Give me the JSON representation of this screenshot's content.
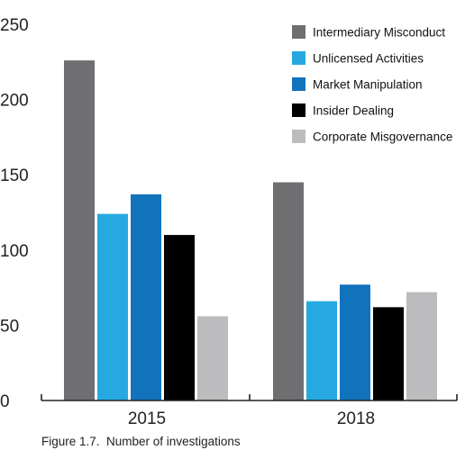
{
  "caption": "Figure 1.7.  Number of investigations",
  "chart_data": {
    "type": "bar",
    "title": "",
    "xlabel": "",
    "ylabel": "",
    "categories": [
      "2015",
      "2018"
    ],
    "ylim": [
      0,
      250
    ],
    "yticks": [
      0,
      50,
      100,
      150,
      200,
      250
    ],
    "grid": false,
    "legend_position": "top-right",
    "series": [
      {
        "name": "Intermediary Misconduct",
        "color": "#6f6f72",
        "values": [
          226,
          145
        ]
      },
      {
        "name": "Unlicensed Activities",
        "color": "#26a9e0",
        "values": [
          124,
          66
        ]
      },
      {
        "name": "Market Manipulation",
        "color": "#1273bd",
        "values": [
          137,
          77
        ]
      },
      {
        "name": "Insider Dealing",
        "color": "#000000",
        "values": [
          110,
          62
        ]
      },
      {
        "name": "Corporate Misgovernance",
        "color": "#bcbcbe",
        "values": [
          56,
          72
        ]
      }
    ]
  }
}
